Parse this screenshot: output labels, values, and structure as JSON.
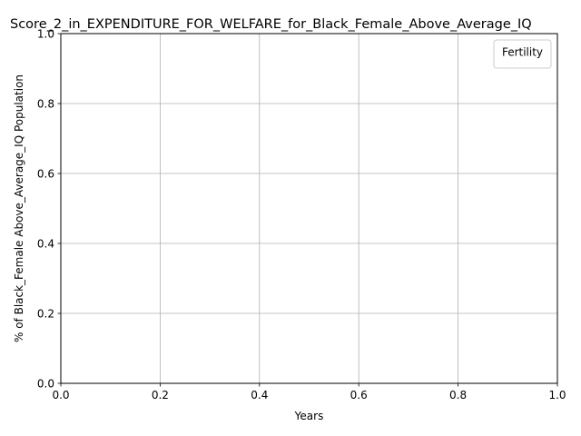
{
  "chart_data": {
    "type": "line",
    "title": "Score_2_in_EXPENDITURE_FOR_WELFARE_for_Black_Female_Above_Average_IQ",
    "xlabel": "Years",
    "ylabel": "% of Black_Female Above_Average_IQ Population",
    "xlim": [
      0.0,
      1.0
    ],
    "ylim": [
      0.0,
      1.0
    ],
    "xticks": [
      "0.0",
      "0.2",
      "0.4",
      "0.6",
      "0.8",
      "1.0"
    ],
    "yticks": [
      "0.0",
      "0.2",
      "0.4",
      "0.6",
      "0.8",
      "1.0"
    ],
    "grid": true,
    "legend": {
      "title": "Fertility",
      "placement": "top-right",
      "entries": []
    },
    "series": []
  },
  "colors": {
    "grid": "#b0b0b0",
    "axes": "#000000",
    "background": "#ffffff"
  }
}
